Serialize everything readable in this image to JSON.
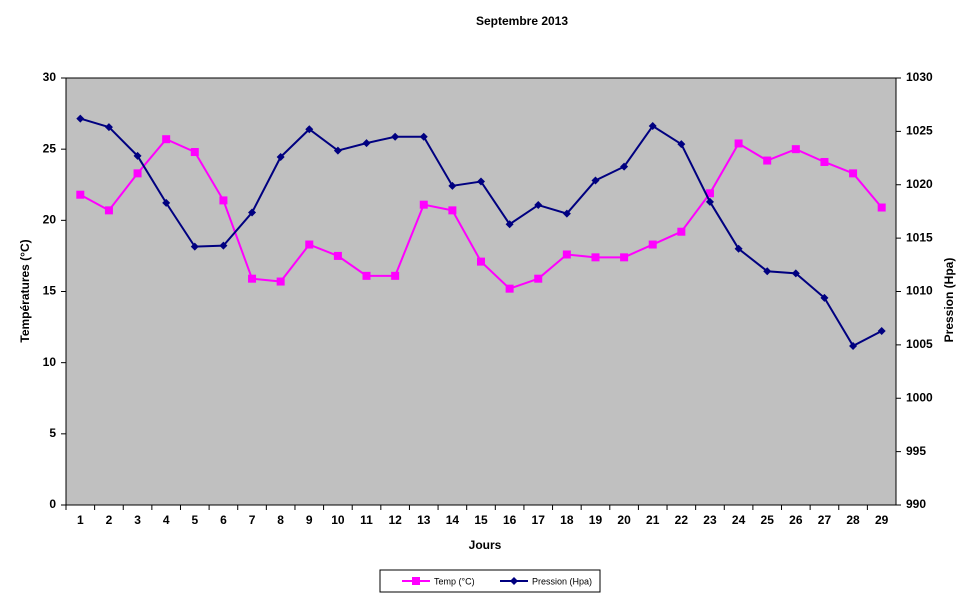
{
  "chart_data": {
    "type": "line",
    "title": "Septembre 2013",
    "x_label": "Jours",
    "y_label": "Températures (°C)",
    "y2_label": "Pression (Hpa)",
    "categories": [
      "1",
      "2",
      "3",
      "4",
      "5",
      "6",
      "7",
      "8",
      "9",
      "10",
      "11",
      "12",
      "13",
      "14",
      "15",
      "16",
      "17",
      "18",
      "19",
      "20",
      "21",
      "22",
      "23",
      "24",
      "25",
      "26",
      "27",
      "28",
      "29"
    ],
    "ylim": [
      0,
      30
    ],
    "yticks": [
      0,
      5,
      10,
      15,
      20,
      25,
      30
    ],
    "y2lim": [
      990,
      1030
    ],
    "y2ticks": [
      990,
      995,
      1000,
      1005,
      1010,
      1015,
      1020,
      1025,
      1030
    ],
    "series": [
      {
        "name": "Temp (°C)",
        "color": "#ff00ff",
        "marker": "square",
        "values": [
          21.8,
          20.7,
          23.3,
          25.7,
          24.8,
          21.4,
          15.9,
          15.7,
          18.3,
          17.5,
          16.1,
          16.1,
          21.1,
          20.7,
          17.1,
          15.2,
          15.9,
          17.6,
          17.4,
          17.4,
          18.3,
          19.2,
          21.9,
          25.4,
          24.2,
          25.0,
          24.1,
          23.3,
          20.9
        ]
      },
      {
        "name": "Pression (Hpa)",
        "color": "#000080",
        "marker": "diamond",
        "axis": "y2",
        "values": [
          1026.2,
          1025.4,
          1022.7,
          1018.3,
          1014.2,
          1014.3,
          1017.4,
          1022.6,
          1025.2,
          1023.2,
          1023.9,
          1024.5,
          1024.5,
          1019.9,
          1020.3,
          1016.3,
          1018.1,
          1017.3,
          1020.4,
          1021.7,
          1025.5,
          1023.8,
          1018.4,
          1014.0,
          1011.9,
          1011.7,
          1009.4,
          1004.9,
          1006.3
        ]
      }
    ]
  }
}
